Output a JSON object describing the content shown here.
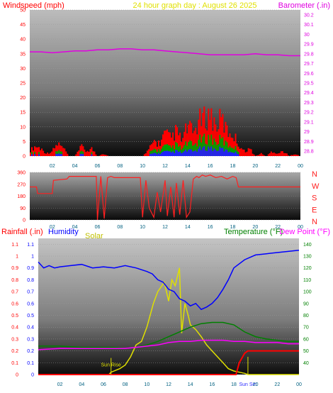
{
  "colors": {
    "wind": "#ff0000",
    "gust": "#ff0000",
    "wind_green": "#00a000",
    "wind_blue": "#2020ff",
    "barometer": "#e000e0",
    "direction": "#ff2020",
    "humidity": "#0000ff",
    "solar": "#e0e000",
    "temperature": "#008000",
    "dewpoint": "#ff00ff",
    "rainfall": "#ff0000",
    "axis_dark_text": "#006080"
  },
  "chart_data": [
    {
      "type": "bar",
      "title": "24 hour graph day : August 26 2025",
      "left_label": "Windspeed (mph)",
      "right_label": "Barometer (.in)",
      "x_ticks": [
        "02",
        "04",
        "06",
        "08",
        "10",
        "12",
        "14",
        "16",
        "18",
        "20",
        "22",
        "00"
      ],
      "y_ticks": [
        "0",
        "5",
        "10",
        "15",
        "20",
        "25",
        "30",
        "35",
        "40",
        "45",
        "50"
      ],
      "ylim": [
        0,
        50
      ],
      "right_ticks": [
        "28.8",
        "28.9",
        "29",
        "29.1",
        "29.2",
        "29.3",
        "29.4",
        "29.5",
        "29.6",
        "29.7",
        "29.8",
        "29.9",
        "30",
        "30.1",
        "30.2"
      ],
      "right_lim": [
        28.75,
        30.25
      ],
      "series": [
        {
          "name": "Windspeed",
          "hours": [
            0,
            0.5,
            1,
            1.5,
            2,
            2.5,
            3,
            3.5,
            4,
            4.5,
            5,
            5.5,
            6,
            6.5,
            7,
            7.5,
            8,
            8.5,
            9,
            9.5,
            10,
            10.5,
            11,
            11.5,
            12,
            12.5,
            13,
            13.5,
            14,
            14.5,
            15,
            15.5,
            16,
            16.5,
            17,
            17.5,
            18,
            18.5,
            19,
            19.5,
            20,
            20.5,
            21,
            21.5,
            22,
            22.5,
            23,
            23.5,
            24
          ],
          "values": [
            2,
            4,
            3,
            1,
            2,
            5,
            3,
            0,
            0,
            4,
            2,
            3,
            0,
            1,
            0,
            0,
            0,
            0,
            0,
            0,
            0,
            2,
            6,
            5,
            9,
            7,
            10,
            6,
            12,
            9,
            14,
            15,
            17,
            12,
            15,
            10,
            9,
            5,
            2,
            3,
            0,
            1,
            0,
            2,
            1,
            2,
            0,
            1,
            0
          ]
        },
        {
          "name": "Barometer",
          "hours": [
            0,
            1,
            2,
            3,
            4,
            5,
            6,
            7,
            8,
            9,
            10,
            11,
            12,
            13,
            14,
            15,
            16,
            17,
            18,
            19,
            20,
            21,
            22,
            23,
            24
          ],
          "values": [
            29.82,
            29.82,
            29.81,
            29.82,
            29.83,
            29.83,
            29.84,
            29.84,
            29.85,
            29.85,
            29.84,
            29.84,
            29.83,
            29.82,
            29.81,
            29.8,
            29.79,
            29.79,
            29.79,
            29.79,
            29.8,
            29.79,
            29.79,
            29.78,
            29.78
          ]
        }
      ]
    },
    {
      "type": "line",
      "title": "",
      "x_ticks": [
        "02",
        "04",
        "06",
        "08",
        "10",
        "12",
        "14",
        "16",
        "18",
        "20",
        "22",
        "00"
      ],
      "y_ticks": [
        "0",
        "90",
        "180",
        "270",
        "360"
      ],
      "ylim": [
        0,
        360
      ],
      "compass": [
        "N",
        "W",
        "S",
        "E",
        "N"
      ],
      "series": [
        {
          "name": "Wind Direction",
          "hours": [
            0,
            0.6,
            0.7,
            2.0,
            2.1,
            3.3,
            3.5,
            5.9,
            6.0,
            6.3,
            6.6,
            6.9,
            7.2,
            7.5,
            9.8,
            10.0,
            10.3,
            10.6,
            11.0,
            11.3,
            11.6,
            12.0,
            12.2,
            12.5,
            12.8,
            13.0,
            13.3,
            13.6,
            13.9,
            14.2,
            14.5,
            14.8,
            15.0,
            15.3,
            15.6,
            16.0,
            16.5,
            17.0,
            17.5,
            18.0,
            18.3,
            18.5,
            19.0,
            20.0,
            21.0,
            22.0,
            23.0,
            24.0
          ],
          "values": [
            250,
            250,
            200,
            200,
            300,
            310,
            330,
            330,
            0,
            330,
            10,
            320,
            330,
            320,
            320,
            20,
            300,
            90,
            20,
            210,
            60,
            300,
            30,
            250,
            20,
            280,
            40,
            300,
            20,
            60,
            310,
            330,
            320,
            340,
            330,
            340,
            320,
            330,
            310,
            330,
            320,
            250,
            250,
            250,
            250,
            250,
            250,
            250
          ]
        }
      ]
    },
    {
      "type": "line",
      "title": "",
      "labels": {
        "rainfall": "Rainfall (.in)",
        "humidity": "Humidity",
        "solar": "Solar",
        "temperature": "Temperature (°F)",
        "dewpoint": "Dew Point (°F)"
      },
      "x_ticks": [
        "02",
        "04",
        "06",
        "08",
        "10",
        "12",
        "14",
        "16",
        "18",
        "20",
        "22",
        "00"
      ],
      "y_ticks": [
        "0",
        "0.1",
        "0.2",
        "0.3",
        "0.4",
        "0.5",
        "0.6",
        "0.7",
        "0.8",
        "0.9",
        "1",
        "1.1"
      ],
      "ylim": [
        0,
        1.15
      ],
      "right_ticks": [
        "40",
        "50",
        "60",
        "70",
        "80",
        "90",
        "100",
        "110",
        "120",
        "130",
        "140"
      ],
      "right_lim": [
        30,
        145
      ],
      "sunrise_label": "Sun Rise",
      "sunset_label": "Sun Set",
      "sunrise_hour": 6.7,
      "sunset_hour": 19.3,
      "series": [
        {
          "name": "Humidity",
          "hours": [
            0,
            0.5,
            1,
            1.5,
            2,
            3,
            4,
            5,
            6,
            7,
            8,
            9,
            10,
            10.5,
            11,
            11.5,
            12,
            12.5,
            13,
            13.5,
            14,
            14.5,
            15,
            15.5,
            16,
            16.5,
            17,
            17.5,
            18,
            19,
            20,
            21,
            22,
            23,
            24
          ],
          "values": [
            0.95,
            0.9,
            0.92,
            0.9,
            0.91,
            0.92,
            0.93,
            0.9,
            0.91,
            0.9,
            0.92,
            0.9,
            0.87,
            0.85,
            0.8,
            0.78,
            0.72,
            0.7,
            0.64,
            0.62,
            0.58,
            0.6,
            0.55,
            0.57,
            0.6,
            0.65,
            0.72,
            0.8,
            0.9,
            0.97,
            1.01,
            1.02,
            1.03,
            1.04,
            1.05
          ]
        },
        {
          "name": "Temperature",
          "hours": [
            0,
            2,
            4,
            6,
            7,
            8,
            9,
            10,
            11,
            12,
            13,
            14,
            15,
            16,
            17,
            18,
            19,
            20,
            21,
            22,
            23,
            24
          ],
          "values": [
            54,
            54,
            53,
            53,
            53,
            52,
            53,
            55,
            58,
            62,
            66,
            70,
            73,
            74,
            74,
            72,
            66,
            62,
            60,
            59,
            58,
            58
          ]
        },
        {
          "name": "Dew Point",
          "hours": [
            0,
            2,
            4,
            6,
            7,
            8,
            9,
            10,
            11,
            12,
            13,
            14,
            15,
            16,
            17,
            18,
            19,
            20,
            21,
            22,
            23,
            24
          ],
          "values": [
            51,
            52,
            52,
            52,
            52,
            52,
            53,
            54,
            55,
            57,
            58,
            58,
            59,
            59,
            59,
            58,
            58,
            57,
            57,
            57,
            56,
            56
          ]
        },
        {
          "name": "Solar",
          "hours": [
            0,
            6.5,
            6.7,
            7.5,
            8,
            8.5,
            9,
            9.5,
            10,
            10.3,
            10.6,
            11,
            11.3,
            11.6,
            12,
            12.3,
            12.6,
            13,
            13.2,
            13.5,
            13.8,
            14,
            14.5,
            15,
            15.5,
            16,
            16.5,
            17,
            17.5,
            18,
            18.5,
            19,
            19.3,
            24
          ],
          "values": [
            0,
            0,
            0.02,
            0.05,
            0.08,
            0.15,
            0.25,
            0.28,
            0.4,
            0.5,
            0.6,
            0.7,
            0.74,
            0.78,
            0.62,
            0.8,
            0.75,
            0.9,
            0.35,
            0.6,
            0.5,
            0.42,
            0.38,
            0.32,
            0.25,
            0.2,
            0.15,
            0.1,
            0.05,
            0.03,
            0.02,
            0.01,
            0,
            0
          ]
        },
        {
          "name": "Rainfall",
          "hours": [
            0,
            18.2,
            18.5,
            19,
            19.3,
            24
          ],
          "values": [
            0,
            0,
            0.1,
            0.18,
            0.2,
            0.2
          ]
        }
      ]
    }
  ]
}
